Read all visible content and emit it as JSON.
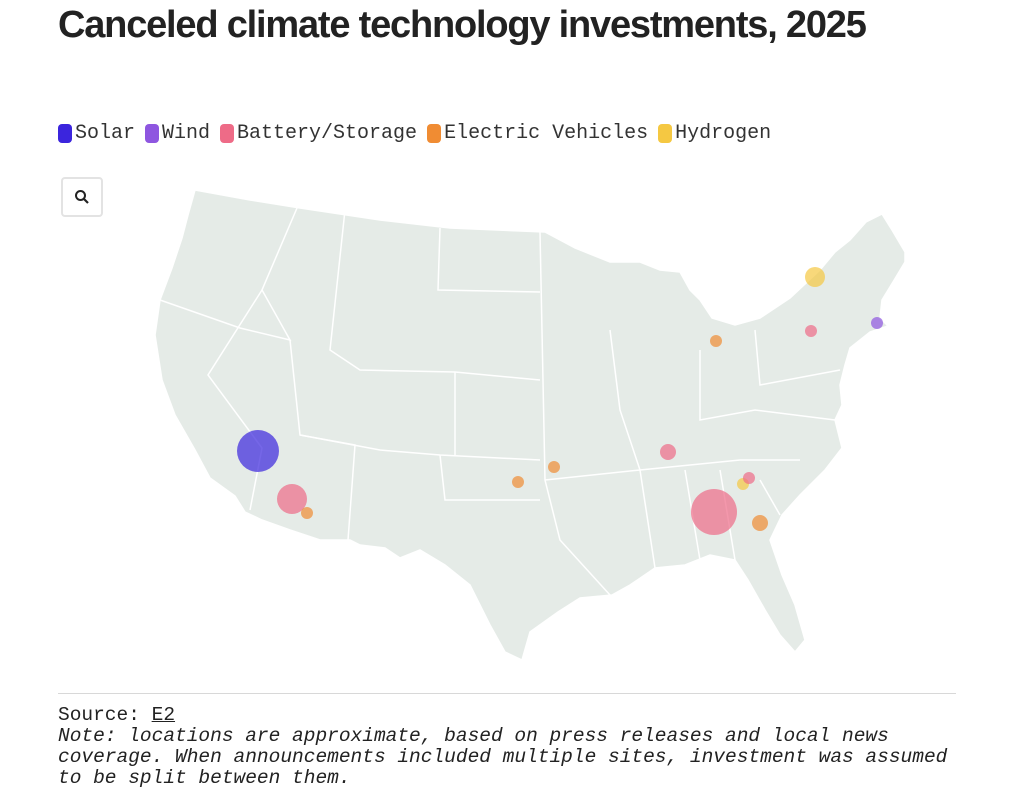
{
  "title": "Canceled climate technology investments, 2025",
  "legend": [
    {
      "label": "Solar",
      "color": "#3b25dd"
    },
    {
      "label": "Wind",
      "color": "#8e56e0"
    },
    {
      "label": "Battery/Storage",
      "color": "#ee6b87"
    },
    {
      "label": "Electric Vehicles",
      "color": "#f08c33"
    },
    {
      "label": "Hydrogen",
      "color": "#f5c842"
    }
  ],
  "zoom_button": {
    "icon": "search-icon"
  },
  "footer": {
    "source_label": "Source:",
    "source_link": "E2",
    "note": "Note: locations are approximate, based on press releases and local news coverage. When announcements included multiple sites, investment was assumed to be split between them."
  }
}
